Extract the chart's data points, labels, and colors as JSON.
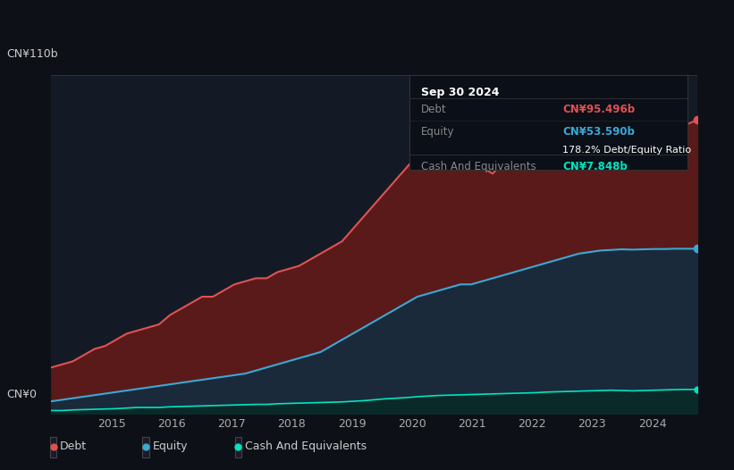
{
  "bg_color": "#0d1117",
  "plot_bg_color": "#131a25",
  "title": "Sep 30 2024",
  "tooltip": {
    "date": "Sep 30 2024",
    "debt_label": "Debt",
    "debt_value": "CN¥95.496b",
    "equity_label": "Equity",
    "equity_value": "CN¥53.590b",
    "ratio_text": "178.2% Debt/Equity Ratio",
    "cash_label": "Cash And Equivalents",
    "cash_value": "CN¥7.848b"
  },
  "ylabel_top": "CN¥110b",
  "ylabel_bottom": "CN¥0",
  "x_labels": [
    "2015",
    "2016",
    "2017",
    "2018",
    "2019",
    "2020",
    "2021",
    "2022",
    "2023",
    "2024"
  ],
  "debt_color": "#e05252",
  "equity_color": "#3ca8d4",
  "cash_color": "#00e5c0",
  "debt_fill": "#5a1a1a",
  "equity_fill": "#1a2a3a",
  "legend_labels": [
    "Debt",
    "Equity",
    "Cash And Equivalents"
  ],
  "debt_data": [
    15,
    16,
    17,
    19,
    21,
    22,
    24,
    26,
    27,
    28,
    29,
    32,
    34,
    36,
    38,
    38,
    40,
    42,
    43,
    44,
    44,
    46,
    47,
    48,
    50,
    52,
    54,
    56,
    60,
    64,
    68,
    72,
    76,
    80,
    84,
    88,
    90,
    92,
    88,
    84,
    80,
    78,
    82,
    86,
    90,
    92,
    94,
    96,
    95,
    94,
    92,
    90,
    88,
    86,
    84,
    86,
    88,
    90,
    92,
    94,
    95.496
  ],
  "equity_data": [
    4,
    4.5,
    5,
    5.5,
    6,
    6.5,
    7,
    7.5,
    8,
    8.5,
    9,
    9.5,
    10,
    10.5,
    11,
    11.5,
    12,
    12.5,
    13,
    14,
    15,
    16,
    17,
    18,
    19,
    20,
    22,
    24,
    26,
    28,
    30,
    32,
    34,
    36,
    38,
    39,
    40,
    41,
    42,
    42,
    43,
    44,
    45,
    46,
    47,
    48,
    49,
    50,
    51,
    52,
    52.5,
    53,
    53.2,
    53.4,
    53.3,
    53.4,
    53.5,
    53.5,
    53.6,
    53.59,
    53.59
  ],
  "cash_data": [
    1,
    1,
    1.2,
    1.3,
    1.4,
    1.5,
    1.6,
    1.8,
    2,
    2,
    2,
    2.2,
    2.3,
    2.4,
    2.5,
    2.6,
    2.7,
    2.8,
    2.9,
    3,
    3,
    3.2,
    3.3,
    3.4,
    3.5,
    3.6,
    3.7,
    3.8,
    4,
    4.2,
    4.5,
    4.8,
    5,
    5.2,
    5.5,
    5.7,
    5.9,
    6,
    6.1,
    6.2,
    6.3,
    6.4,
    6.5,
    6.6,
    6.7,
    6.8,
    7,
    7.1,
    7.2,
    7.3,
    7.4,
    7.5,
    7.6,
    7.5,
    7.4,
    7.5,
    7.6,
    7.7,
    7.8,
    7.85,
    7.848
  ],
  "ylim": [
    0,
    110
  ],
  "n_points": 61,
  "x_start_year": 2014.0,
  "x_end_year": 2024.75
}
